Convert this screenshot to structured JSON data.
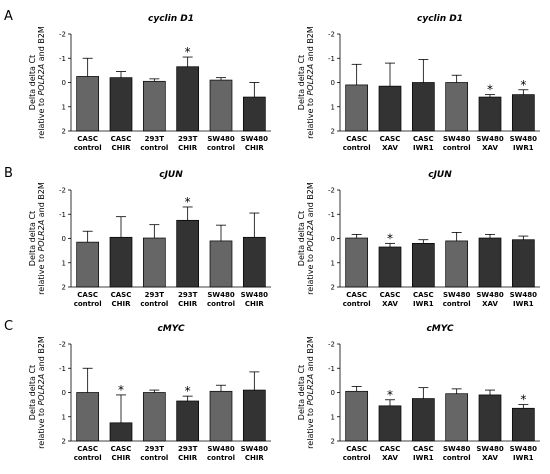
{
  "panel_letters": [
    "A",
    "B",
    "C"
  ],
  "colors": {
    "control": "#666666",
    "treated": "#333333",
    "axis": "#000000",
    "error": "#000000"
  },
  "chart_data": [
    {
      "id": "cyclin-d1-chir",
      "type": "bar",
      "panel": "A",
      "title": "cyclin D1",
      "ylabel": [
        "Delta delta Ct",
        "relative to ",
        "POLR2A",
        " and B2M"
      ],
      "ylim": [
        2,
        -2
      ],
      "yticks": [
        "-2",
        "-1",
        "0",
        "1",
        "2"
      ],
      "ytick_values": [
        -2,
        -1,
        0,
        1,
        2
      ],
      "categories": [
        [
          "CASC",
          "control"
        ],
        [
          "CASC",
          "CHIR"
        ],
        [
          "293T",
          "control"
        ],
        [
          "293T",
          "CHIR"
        ],
        [
          "SW480",
          "control"
        ],
        [
          "SW480",
          "CHIR"
        ]
      ],
      "groups": [
        "control",
        "treated",
        "control",
        "treated",
        "control",
        "treated"
      ],
      "values": [
        -0.25,
        -0.2,
        -0.05,
        -0.65,
        -0.1,
        0.6
      ],
      "errors": [
        0.75,
        0.25,
        0.1,
        0.4,
        0.1,
        0.6
      ],
      "significant": [
        false,
        false,
        false,
        true,
        false,
        false
      ]
    },
    {
      "id": "cyclin-d1-xav-iwr1",
      "type": "bar",
      "panel": "A",
      "title": "cyclin D1",
      "ylabel": [
        "Delta delta Ct",
        "relative to ",
        "POLR2A",
        " and B2M"
      ],
      "ylim": [
        2,
        -2
      ],
      "yticks": [
        "-2",
        "-1",
        "0",
        "1",
        "2"
      ],
      "ytick_values": [
        -2,
        -1,
        0,
        1,
        2
      ],
      "categories": [
        [
          "CASC",
          "control"
        ],
        [
          "CASC",
          "XAV"
        ],
        [
          "CASC",
          "IWR1"
        ],
        [
          "SW480",
          "control"
        ],
        [
          "SW480",
          "XAV"
        ],
        [
          "SW480",
          "IWR1"
        ]
      ],
      "groups": [
        "control",
        "treated",
        "treated",
        "control",
        "treated",
        "treated"
      ],
      "values": [
        0.1,
        0.15,
        0.0,
        0.0,
        0.6,
        0.5
      ],
      "errors": [
        0.85,
        0.95,
        0.95,
        0.3,
        0.1,
        0.2
      ],
      "significant": [
        false,
        false,
        false,
        false,
        true,
        true
      ]
    },
    {
      "id": "cjun-chir",
      "type": "bar",
      "panel": "B",
      "title": "cJUN",
      "ylabel": [
        "Delta delta Ct",
        "relative to ",
        "POLR2A",
        " and B2M"
      ],
      "ylim": [
        2,
        -2
      ],
      "yticks": [
        "-2",
        "-1",
        "0",
        "1",
        "2"
      ],
      "ytick_values": [
        -2,
        -1,
        0,
        1,
        2
      ],
      "categories": [
        [
          "CASC",
          "control"
        ],
        [
          "CASC",
          "CHIR"
        ],
        [
          "293T",
          "control"
        ],
        [
          "293T",
          "CHIR"
        ],
        [
          "SW480",
          "control"
        ],
        [
          "SW480",
          "CHIR"
        ]
      ],
      "groups": [
        "control",
        "treated",
        "control",
        "treated",
        "control",
        "treated"
      ],
      "values": [
        0.15,
        -0.05,
        -0.02,
        -0.75,
        0.1,
        -0.05
      ],
      "errors": [
        0.45,
        0.85,
        0.55,
        0.55,
        0.65,
        1.0
      ],
      "significant": [
        false,
        false,
        false,
        true,
        false,
        false
      ]
    },
    {
      "id": "cjun-xav-iwr1",
      "type": "bar",
      "panel": "B",
      "title": "cJUN",
      "ylabel": [
        "Delta delta Ct",
        "relative to ",
        "POLR2A",
        " and B2M"
      ],
      "ylim": [
        2,
        -2
      ],
      "yticks": [
        "-2",
        "-1",
        "0",
        "1",
        "2"
      ],
      "ytick_values": [
        -2,
        -1,
        0,
        1,
        2
      ],
      "categories": [
        [
          "CASC",
          "control"
        ],
        [
          "CASC",
          "XAV"
        ],
        [
          "CASC",
          "IWR1"
        ],
        [
          "SW480",
          "control"
        ],
        [
          "SW480",
          "XAV"
        ],
        [
          "SW480",
          "IWR1"
        ]
      ],
      "groups": [
        "control",
        "treated",
        "treated",
        "control",
        "treated",
        "treated"
      ],
      "values": [
        -0.02,
        0.35,
        0.2,
        0.1,
        -0.02,
        0.05
      ],
      "errors": [
        0.15,
        0.15,
        0.15,
        0.35,
        0.15,
        0.15
      ],
      "significant": [
        false,
        true,
        false,
        false,
        false,
        false
      ]
    },
    {
      "id": "cmyc-chir",
      "type": "bar",
      "panel": "C",
      "title": "cMYC",
      "ylabel": [
        "Delta delta Ct",
        "relative to ",
        "POLR2A",
        " and B2M"
      ],
      "ylim": [
        2,
        -2
      ],
      "yticks": [
        "-2",
        "-1",
        "0",
        "1",
        "2"
      ],
      "ytick_values": [
        -2,
        -1,
        0,
        1,
        2
      ],
      "categories": [
        [
          "CASC",
          "control"
        ],
        [
          "CASC",
          "CHIR"
        ],
        [
          "293T",
          "control"
        ],
        [
          "293T",
          "CHIR"
        ],
        [
          "SW480",
          "control"
        ],
        [
          "SW480",
          "CHIR"
        ]
      ],
      "groups": [
        "control",
        "treated",
        "control",
        "treated",
        "control",
        "treated"
      ],
      "values": [
        0.0,
        1.25,
        0.0,
        0.35,
        -0.05,
        -0.1
      ],
      "errors": [
        1.0,
        1.15,
        0.1,
        0.2,
        0.25,
        0.75
      ],
      "significant": [
        false,
        true,
        false,
        true,
        false,
        false
      ]
    },
    {
      "id": "cmyc-xav-iwr1",
      "type": "bar",
      "panel": "C",
      "title": "cMYC",
      "ylabel": [
        "Delta delta Ct",
        "relative to ",
        "POLR2A",
        " and B2M"
      ],
      "ylim": [
        2,
        -2
      ],
      "yticks": [
        "-2",
        "-1",
        "0",
        "1",
        "2"
      ],
      "ytick_values": [
        -2,
        -1,
        0,
        1,
        2
      ],
      "categories": [
        [
          "CASC",
          "control"
        ],
        [
          "CASC",
          "XAV"
        ],
        [
          "CASC",
          "IWR1"
        ],
        [
          "SW480",
          "control"
        ],
        [
          "SW480",
          "XAV"
        ],
        [
          "SW480",
          "IWR1"
        ]
      ],
      "groups": [
        "control",
        "treated",
        "treated",
        "control",
        "treated",
        "treated"
      ],
      "values": [
        -0.05,
        0.55,
        0.25,
        0.05,
        0.1,
        0.65
      ],
      "errors": [
        0.2,
        0.25,
        0.45,
        0.2,
        0.2,
        0.15
      ],
      "significant": [
        false,
        true,
        false,
        false,
        false,
        true
      ]
    }
  ]
}
